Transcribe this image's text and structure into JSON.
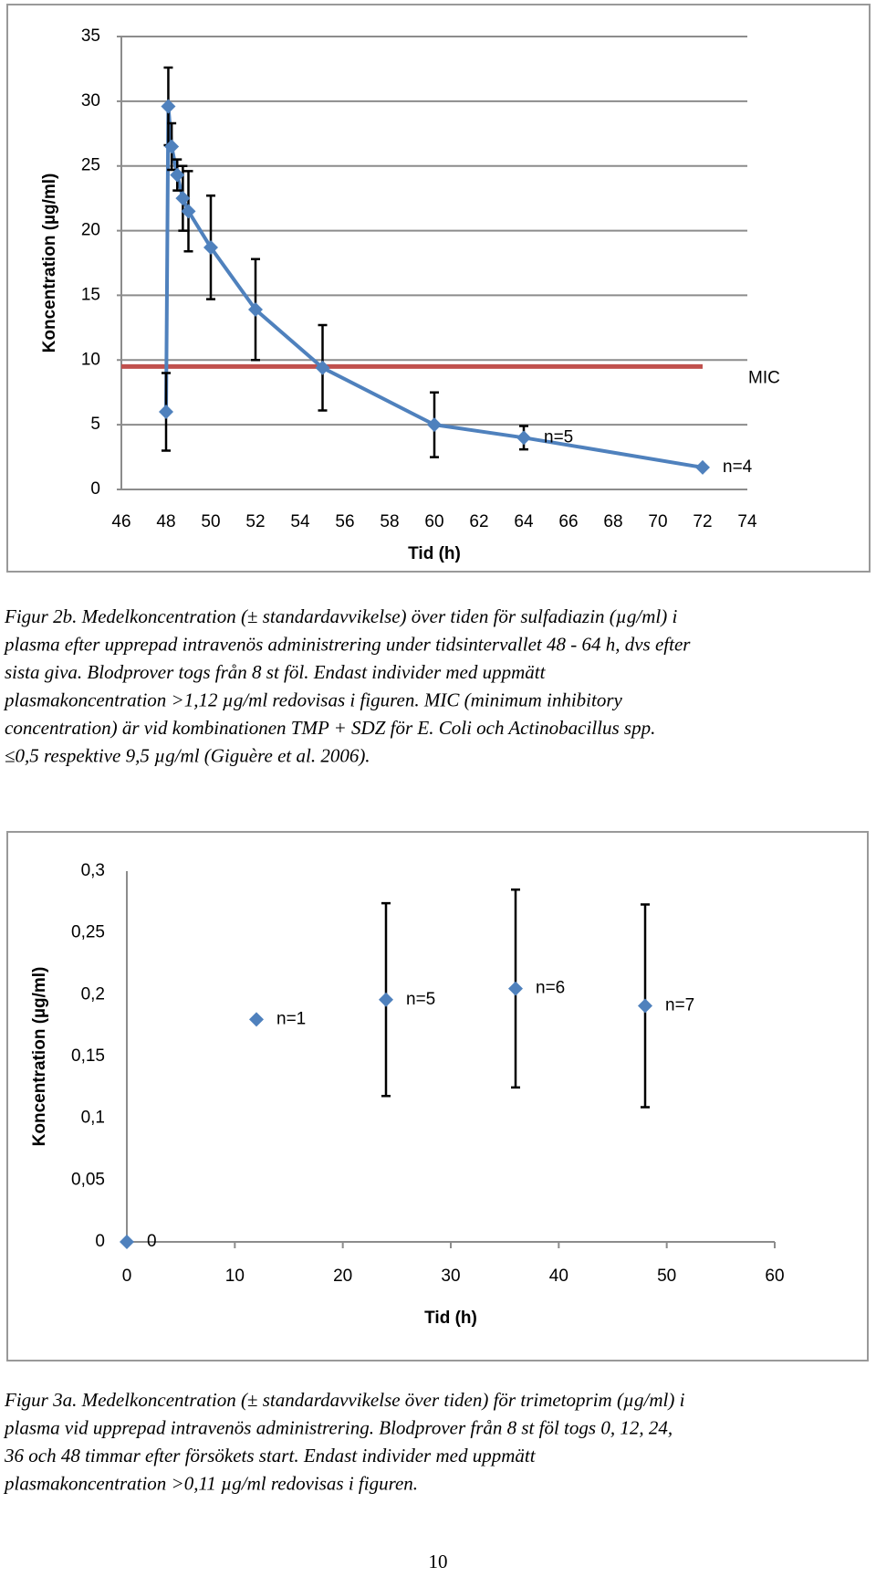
{
  "chart_data": [
    {
      "type": "line",
      "xlabel": "Tid (h)",
      "ylabel": "Koncentration (µg/ml)",
      "x": [
        48,
        48.1,
        48.25,
        48.5,
        48.75,
        49,
        50,
        52,
        55,
        60,
        64,
        72
      ],
      "series": [
        {
          "name": null,
          "color": "#4f81bd",
          "values": [
            6,
            29.6,
            26.5,
            24.3,
            22.5,
            21.5,
            18.7,
            13.9,
            9.4,
            5,
            4,
            1.7
          ],
          "errors": [
            3,
            3,
            1.8,
            1.2,
            2.5,
            3.1,
            4,
            3.9,
            3.3,
            2.5,
            0.9,
            null
          ],
          "labels": [
            null,
            null,
            null,
            null,
            null,
            null,
            null,
            null,
            null,
            null,
            "n=5",
            "n=4"
          ]
        }
      ],
      "reference_line": {
        "name": "MIC",
        "color": "#c0504d",
        "x": [
          46,
          72
        ],
        "values": [
          9.5,
          9.5
        ]
      },
      "xlim": [
        46,
        74
      ],
      "xticks": [
        46,
        48,
        50,
        52,
        54,
        56,
        58,
        60,
        62,
        64,
        66,
        68,
        70,
        72,
        74
      ],
      "ylim": [
        0,
        35
      ],
      "yticks": [
        0,
        5,
        10,
        15,
        20,
        25,
        30,
        35
      ],
      "grid": true
    },
    {
      "type": "scatter",
      "xlabel": "Tid (h)",
      "ylabel": "Koncentration (µg/ml)",
      "x": [
        0,
        12,
        24,
        36,
        48
      ],
      "series": [
        {
          "name": null,
          "color": "#4f81bd",
          "values": [
            0,
            0.18,
            0.196,
            0.205,
            0.191
          ],
          "errors": [
            null,
            null,
            0.078,
            0.08,
            0.082
          ],
          "labels": [
            "0",
            "n=1",
            "n=5",
            "n=6",
            "n=7"
          ]
        }
      ],
      "xlim": [
        0,
        60
      ],
      "xticks": [
        0,
        10,
        20,
        30,
        40,
        50,
        60
      ],
      "ylim": [
        0,
        0.3
      ],
      "yticks": [
        0,
        {
          "value": 0.05,
          "label": "0,05"
        },
        {
          "value": 0.1,
          "label": "0,1"
        },
        {
          "value": 0.15,
          "label": "0,15"
        },
        {
          "value": 0.2,
          "label": "0,2"
        },
        {
          "value": 0.25,
          "label": "0,25"
        },
        {
          "value": 0.3,
          "label": "0,3"
        }
      ],
      "grid": false
    }
  ],
  "captions": [
    [
      "Figur 2b. Medelkoncentration (± standardavvikelse)  över tiden för sulfadiazin (µg/ml) i",
      "plasma efter upprepad intravenös administrering under tidsintervallet 48 - 64 h, dvs efter",
      "sista giva. Blodprover togs från 8 st föl. Endast individer med uppmätt",
      "plasmakoncentration >1,12 µg/ml redovisas i figuren. MIC (minimum inhibitory",
      "concentration) är vid kombinationen TMP + SDZ för E. Coli  och Actinobacillus spp.",
      "≤0,5 respektive 9,5 µg/ml (Giguère et al. 2006)."
    ],
    [
      "Figur 3a. Medelkoncentration (± standardavvikelse över tiden) för trimetoprim (µg/ml) i",
      "plasma vid upprepad intravenös administrering. Blodprover från 8 st föl togs 0, 12, 24,",
      "36 och 48 timmar efter försökets start. Endast individer med uppmätt",
      "plasmakoncentration >0,11 µg/ml redovisas i figuren."
    ]
  ],
  "page_number": "10"
}
